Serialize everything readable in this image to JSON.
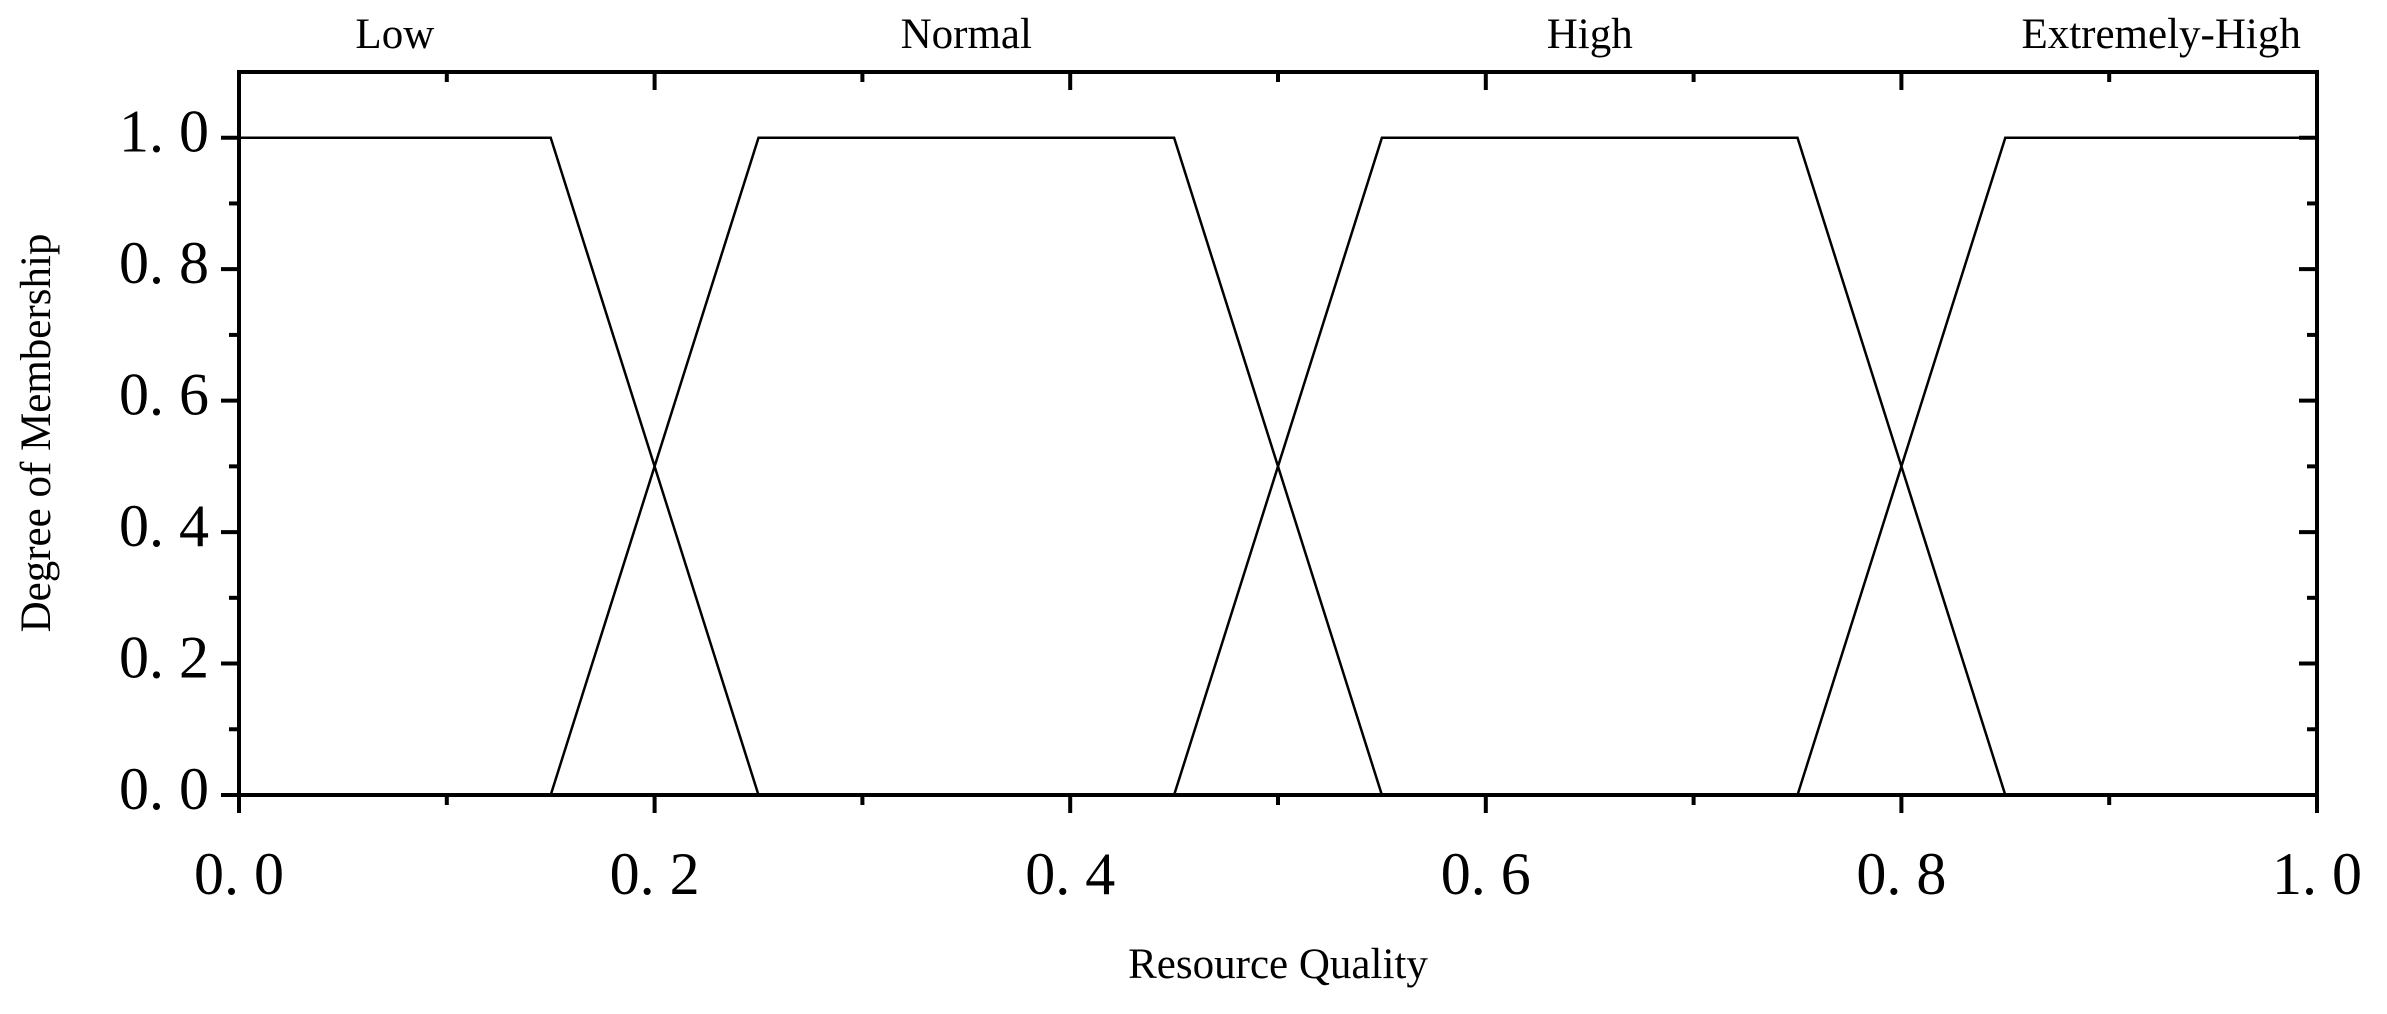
{
  "chart_data": {
    "type": "line",
    "xlabel": "Resource Quality",
    "ylabel": "Degree of Membership",
    "series": [
      {
        "name": "Low",
        "color": "#000000",
        "x": [
          0,
          0.15,
          0.25
        ],
        "values": [
          1,
          1,
          0
        ]
      },
      {
        "name": "Normal",
        "color": "#000000",
        "x": [
          0.15,
          0.25,
          0.45,
          0.55
        ],
        "values": [
          0,
          1,
          1,
          0
        ]
      },
      {
        "name": "High",
        "color": "#000000",
        "x": [
          0.45,
          0.55,
          0.75,
          0.85
        ],
        "values": [
          0,
          1,
          1,
          0
        ]
      },
      {
        "name": "Extremely-High",
        "color": "#000000",
        "x": [
          0.75,
          0.85,
          1.0
        ],
        "values": [
          0,
          1,
          1
        ]
      }
    ],
    "xlim": [
      0,
      1.0
    ],
    "ylim": [
      0,
      1.1
    ],
    "xticks": [
      {
        "value": 0,
        "label": "0. 0"
      },
      {
        "value": 0.2,
        "label": "0. 2"
      },
      {
        "value": 0.4,
        "label": "0. 4"
      },
      {
        "value": 0.6,
        "label": "0. 6"
      },
      {
        "value": 0.8,
        "label": "0. 8"
      },
      {
        "value": 1.0,
        "label": "1. 0"
      }
    ],
    "yticks": [
      {
        "value": 0,
        "label": "0. 0"
      },
      {
        "value": 0.2,
        "label": "0. 2"
      },
      {
        "value": 0.4,
        "label": "0. 4"
      },
      {
        "value": 0.6,
        "label": "0. 6"
      },
      {
        "value": 0.8,
        "label": "0. 8"
      },
      {
        "value": 1.0,
        "label": "1. 0"
      }
    ],
    "xminorticks": [
      0.1,
      0.3,
      0.5,
      0.7,
      0.9
    ],
    "yminorticks": [
      0.1,
      0.3,
      0.5,
      0.7,
      0.9
    ],
    "grid": false
  }
}
